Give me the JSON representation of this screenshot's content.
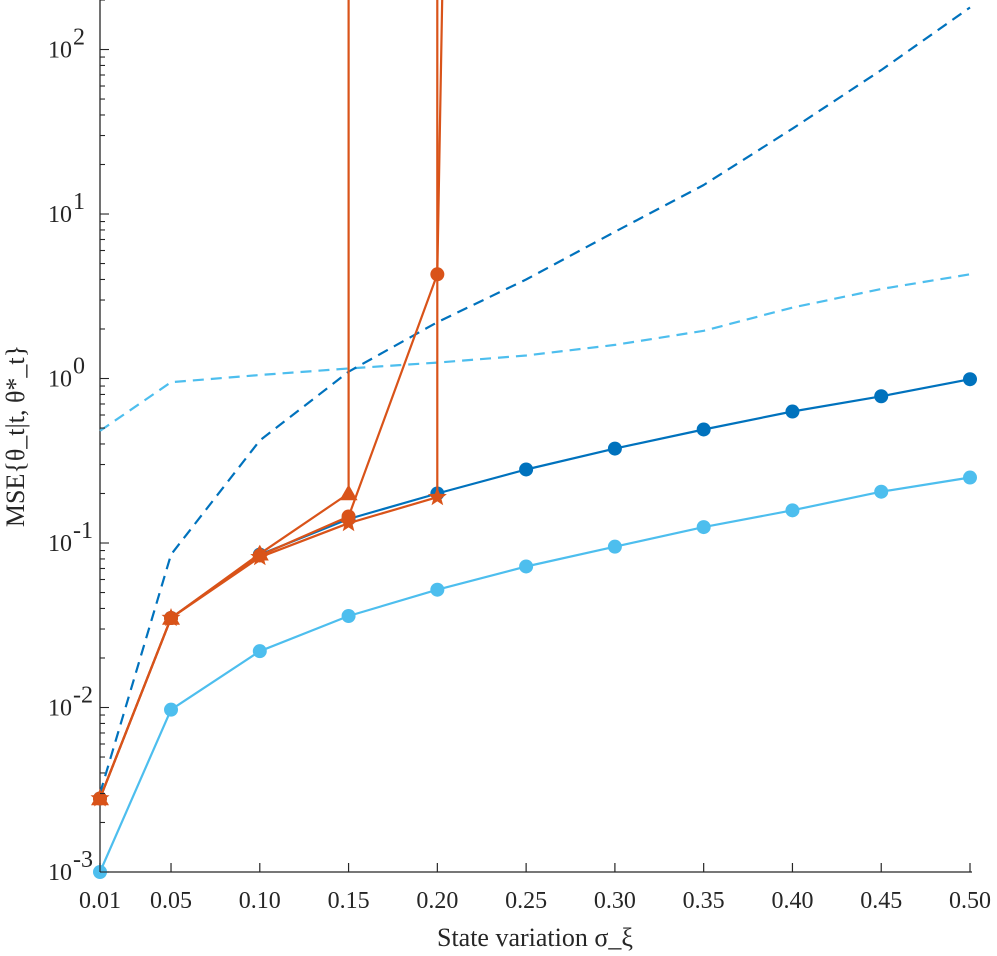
{
  "colors": {
    "dark_blue": "#0072BD",
    "light_blue": "#4DBEEE",
    "orange": "#D95319",
    "axis": "#262626"
  },
  "chart_data": {
    "type": "line",
    "title": "",
    "xlabel": "State variation σ_ξ",
    "ylabel": "MSE{θ_t|t, θ*_t}",
    "y_scale": "log",
    "xlim": [
      0.01,
      0.5
    ],
    "ylim": [
      0.001,
      200
    ],
    "grid": false,
    "x_ticks": [
      0.01,
      0.05,
      0.1,
      0.15,
      0.2,
      0.25,
      0.3,
      0.35,
      0.4,
      0.45,
      0.5
    ],
    "x_tick_labels": [
      "0.01",
      "0.05",
      "0.10",
      "0.15",
      "0.20",
      "0.25",
      "0.30",
      "0.35",
      "0.40",
      "0.45",
      "0.50"
    ],
    "y_tick_labels": [
      {
        "value": 0.001,
        "base": "10",
        "exp": "-3"
      },
      {
        "value": 0.01,
        "base": "10",
        "exp": "-2"
      },
      {
        "value": 0.1,
        "base": "10",
        "exp": "-1"
      },
      {
        "value": 1,
        "base": "10",
        "exp": "0"
      },
      {
        "value": 10,
        "base": "10",
        "exp": "1"
      },
      {
        "value": 100,
        "base": "10",
        "exp": "2"
      }
    ],
    "series": [
      {
        "color": "#4DBEEE",
        "style": "dashed",
        "marker": "none",
        "x": [
          0.01,
          0.05,
          0.1,
          0.15,
          0.2,
          0.25,
          0.3,
          0.35,
          0.4,
          0.45,
          0.5
        ],
        "y": [
          0.48,
          0.95,
          1.05,
          1.15,
          1.25,
          1.38,
          1.6,
          1.95,
          2.7,
          3.5,
          4.3
        ]
      },
      {
        "color": "#0072BD",
        "style": "dashed",
        "marker": "none",
        "x": [
          0.01,
          0.05,
          0.1,
          0.15,
          0.2,
          0.25,
          0.3,
          0.35,
          0.4,
          0.45,
          0.5
        ],
        "y": [
          0.003,
          0.085,
          0.42,
          1.1,
          2.2,
          4.0,
          7.8,
          15,
          33,
          75,
          180
        ]
      },
      {
        "color": "#4DBEEE",
        "style": "solid",
        "marker": "circle",
        "x": [
          0.01,
          0.05,
          0.1,
          0.15,
          0.2,
          0.25,
          0.3,
          0.35,
          0.4,
          0.45,
          0.5
        ],
        "y": [
          0.001,
          0.0097,
          0.022,
          0.036,
          0.052,
          0.072,
          0.095,
          0.125,
          0.158,
          0.205,
          0.25
        ]
      },
      {
        "color": "#0072BD",
        "style": "solid",
        "marker": "circle",
        "x": [
          0.01,
          0.05,
          0.1,
          0.15,
          0.2,
          0.25,
          0.3,
          0.35,
          0.4,
          0.45,
          0.5
        ],
        "y": [
          0.0028,
          0.035,
          0.085,
          0.14,
          0.2,
          0.28,
          0.375,
          0.49,
          0.63,
          0.78,
          0.99
        ]
      },
      {
        "color": "#D95319",
        "style": "solid",
        "marker": "triangle",
        "x": [
          0.01,
          0.05,
          0.1,
          0.15,
          0.15
        ],
        "y": [
          0.0028,
          0.035,
          0.086,
          0.2,
          300
        ]
      },
      {
        "color": "#D95319",
        "style": "solid",
        "marker": "circle",
        "x": [
          0.01,
          0.05,
          0.1,
          0.15,
          0.2,
          0.203
        ],
        "y": [
          0.0028,
          0.035,
          0.084,
          0.145,
          4.3,
          300
        ]
      },
      {
        "color": "#D95319",
        "style": "solid",
        "marker": "star",
        "x": [
          0.01,
          0.05,
          0.1,
          0.15,
          0.2,
          0.2
        ],
        "y": [
          0.0028,
          0.035,
          0.082,
          0.132,
          0.19,
          300
        ]
      }
    ]
  }
}
